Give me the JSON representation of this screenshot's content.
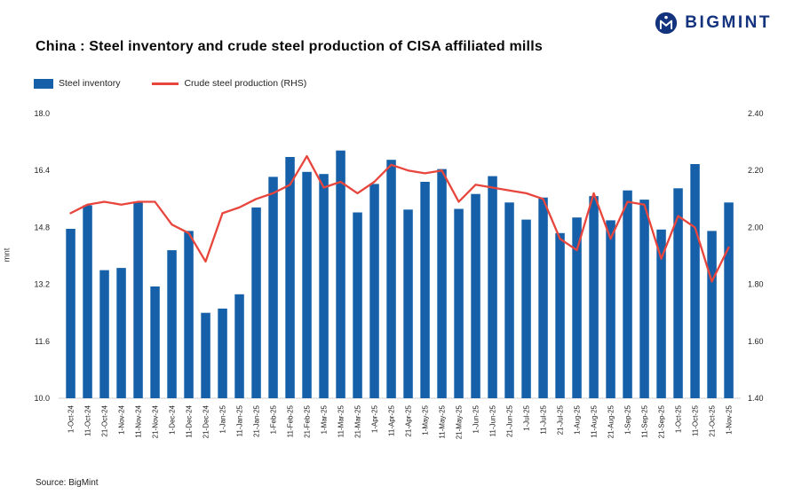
{
  "logo": {
    "text": "BIGMINT"
  },
  "header": {
    "title": "China : Steel inventory and crude steel production of CISA affiliated mills"
  },
  "legend": {
    "bar_label": "Steel inventory",
    "line_label": "Crude steel production (RHS)"
  },
  "source": "Source: BigMint",
  "colors": {
    "bar": "#1560a8",
    "line": "#e8453c",
    "brand": "#14337E",
    "axis_text": "#222222",
    "axis_line": "#cfcfcf"
  },
  "chart_data": {
    "type": "bar",
    "title": "China : Steel inventory and crude steel production of CISA affiliated mills",
    "categories": [
      "1-Oct-24",
      "11-Oct-24",
      "21-Oct-24",
      "1-Nov-24",
      "11-Nov-24",
      "21-Nov-24",
      "1-Dec-24",
      "11-Dec-24",
      "21-Dec-24",
      "1-Jan-25",
      "11-Jan-25",
      "21-Jan-25",
      "1-Feb-25",
      "11-Feb-25",
      "21-Feb-25",
      "1-Mar-25",
      "11-Mar-25",
      "21-Mar-25",
      "1-Apr-25",
      "11-Apr-25",
      "21-Apr-25",
      "1-May-25",
      "11-May-25",
      "21-May-25",
      "1-Jun-25",
      "11-Jun-25",
      "21-Jun-25",
      "1-Jul-25",
      "11-Jul-25",
      "21-Jul-25",
      "1-Aug-25",
      "11-Aug-25",
      "21-Aug-25",
      "1-Sep-25",
      "11-Sep-25",
      "21-Sep-25",
      "1-Oct-25",
      "11-Oct-25",
      "21-Oct-25",
      "1-Nov-25"
    ],
    "series": [
      {
        "name": "Steel inventory",
        "type": "bar",
        "axis": "left",
        "values": [
          14.76,
          15.42,
          13.6,
          13.66,
          15.52,
          13.14,
          14.16,
          14.7,
          12.4,
          12.52,
          12.92,
          15.36,
          16.22,
          16.78,
          16.36,
          16.3,
          16.96,
          15.22,
          16.02,
          16.7,
          15.3,
          16.08,
          16.44,
          15.32,
          15.74,
          16.24,
          15.5,
          15.02,
          15.64,
          14.64,
          15.08,
          15.68,
          15.0,
          15.84,
          15.58,
          14.74,
          15.9,
          16.58,
          14.7,
          15.5
        ]
      },
      {
        "name": "Crude steel production (RHS)",
        "type": "line",
        "axis": "right",
        "values": [
          2.05,
          2.08,
          2.09,
          2.08,
          2.09,
          2.09,
          2.01,
          1.98,
          1.88,
          2.05,
          2.07,
          2.1,
          2.12,
          2.15,
          2.25,
          2.14,
          2.16,
          2.12,
          2.16,
          2.22,
          2.2,
          2.19,
          2.2,
          2.09,
          2.15,
          2.14,
          2.13,
          2.12,
          2.1,
          1.96,
          1.92,
          2.12,
          1.96,
          2.09,
          2.08,
          1.89,
          2.04,
          2.0,
          1.81,
          1.93
        ]
      }
    ],
    "ylabel_left": "mnt",
    "ylim_left": [
      10.0,
      18.0
    ],
    "yticks_left": [
      10.0,
      11.6,
      13.2,
      14.8,
      16.4,
      18.0
    ],
    "ylim_right": [
      1.4,
      2.4
    ],
    "yticks_right": [
      1.4,
      1.6,
      1.8,
      2.0,
      2.2,
      2.4
    ],
    "grid": false,
    "legend_position": "top-left",
    "xlabel": ""
  }
}
